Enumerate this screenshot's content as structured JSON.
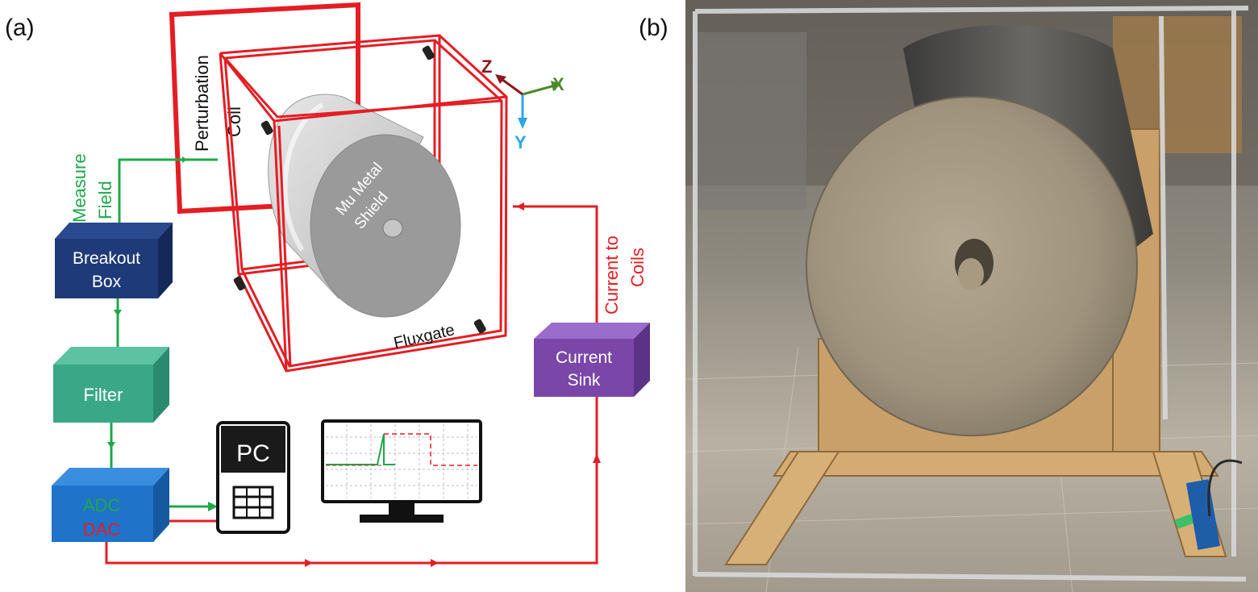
{
  "panels": {
    "a_label": "(a)",
    "b_label": "(b)"
  },
  "coils": {
    "perturbation_line1": "Perturbation",
    "perturbation_line2": "Coil",
    "fluxgate": "Fluxgate"
  },
  "shield": {
    "line1": "Mu Metal",
    "line2": "Shield"
  },
  "axes": {
    "x": "X",
    "y": "Y",
    "z": "Z"
  },
  "signals": {
    "measure_line1": "Measure",
    "measure_line2": "Field",
    "current_line1": "Current to",
    "current_line2": "Coils"
  },
  "blocks": {
    "breakout_line1": "Breakout",
    "breakout_line2": "Box",
    "filter": "Filter",
    "adc": "ADC",
    "dac": "DAC",
    "sink_line1": "Current",
    "sink_line2": "Sink",
    "pc": "PC"
  },
  "colors": {
    "coil_red": "#e31e24",
    "measure_green": "#1fa84a",
    "current_red": "#e31e24",
    "breakout_blue": "#1e3a78",
    "filter_teal": "#3aa887",
    "adc_blue": "#1f73c8",
    "sink_purple": "#7a46a8",
    "x_axis_green": "#4d8a2a",
    "y_axis_blue": "#2aa7e8",
    "z_axis_maroon": "#8a1a1a"
  }
}
